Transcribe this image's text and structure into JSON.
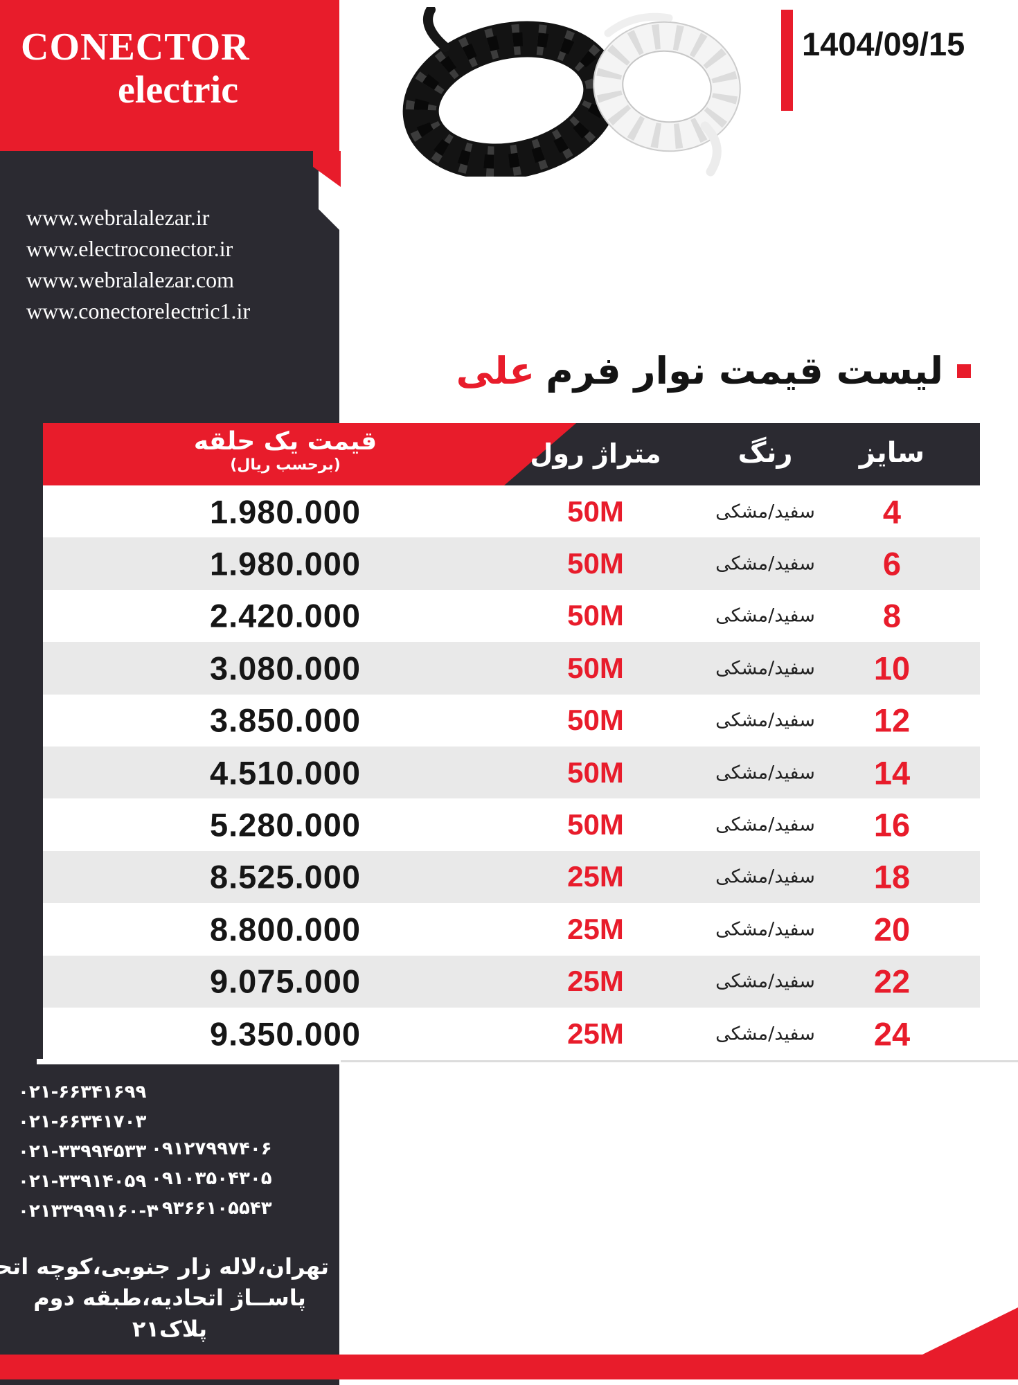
{
  "brand": {
    "name": "CONECTOR",
    "sub": "electric"
  },
  "date": "1404/09/15",
  "websites": [
    "www.webralalezar.ir",
    "www.electroconector.ir",
    "www.webralalezar.com",
    "www.conectorelectric1.ir"
  ],
  "title": {
    "main": "لیست قیمت نوار فرم",
    "highlight": "علی"
  },
  "table": {
    "columns": {
      "size": "سایز",
      "color": "رنگ",
      "roll": "متراژ رول",
      "price": "قیمت یک حلقه",
      "price_unit": "(برحسب ریال)"
    },
    "rows": [
      {
        "size": "4",
        "color": "سفید/مشکی",
        "roll": "50M",
        "price": "1.980.000"
      },
      {
        "size": "6",
        "color": "سفید/مشکی",
        "roll": "50M",
        "price": "1.980.000"
      },
      {
        "size": "8",
        "color": "سفید/مشکی",
        "roll": "50M",
        "price": "2.420.000"
      },
      {
        "size": "10",
        "color": "سفید/مشکی",
        "roll": "50M",
        "price": "3.080.000"
      },
      {
        "size": "12",
        "color": "سفید/مشکی",
        "roll": "50M",
        "price": "3.850.000"
      },
      {
        "size": "14",
        "color": "سفید/مشکی",
        "roll": "50M",
        "price": "4.510.000"
      },
      {
        "size": "16",
        "color": "سفید/مشکی",
        "roll": "50M",
        "price": "5.280.000"
      },
      {
        "size": "18",
        "color": "سفید/مشکی",
        "roll": "25M",
        "price": "8.525.000"
      },
      {
        "size": "20",
        "color": "سفید/مشکی",
        "roll": "25M",
        "price": "8.800.000"
      },
      {
        "size": "22",
        "color": "سفید/مشکی",
        "roll": "25M",
        "price": "9.075.000"
      },
      {
        "size": "24",
        "color": "سفید/مشکی",
        "roll": "25M",
        "price": "9.350.000"
      }
    ]
  },
  "footer": {
    "landline_numbers": [
      "۰۲۱-۶۶۳۴۱۶۹۹",
      "۰۲۱-۶۶۳۴۱۷۰۳",
      "۰۲۱-۳۳۹۹۴۵۳۳",
      "۰۲۱-۳۳۹۱۴۰۵۹",
      "۰۲۱۳۳۹۹۹۱۶۰-۳"
    ],
    "mobile_numbers": [
      "۰۹۱۲۷۹۹۷۴۰۶",
      "۰۹۱۰۳۵۰۴۳۰۵",
      "۰۹۳۶۶۱۰۵۵۴۳"
    ],
    "address_lines": [
      "تهران،لاله زار جنوبی،کوچه اتحادیه",
      "پاســاژ اتحادیه،طبقه دوم",
      "پلاک۲۱"
    ]
  },
  "colors": {
    "red": "#e81c2b",
    "dark": "#2b2a31",
    "row_alt": "#e9e9e9"
  }
}
